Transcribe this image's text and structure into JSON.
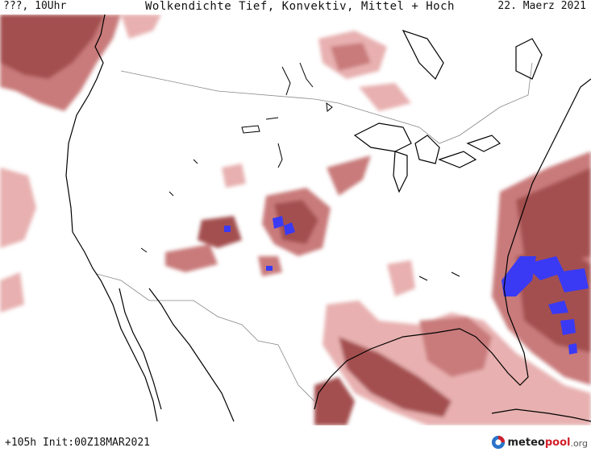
{
  "header": {
    "left": "???, 10Uhr",
    "title": "Wolkendichte  Tief, Konvektiv, Mittel + Hoch",
    "date": "22. Maerz 2021"
  },
  "footer": {
    "init": "+105h Init:00Z18MAR2021",
    "logo": {
      "part1": "meteo",
      "part2": "pool",
      "part3": ".org"
    }
  },
  "colors": {
    "cloud_light": "#e8b0b0",
    "cloud_mid": "#c97a7a",
    "cloud_dark": "#a44f50",
    "convective": "#3a3af5",
    "coast": "#000000",
    "border": "#888888"
  }
}
